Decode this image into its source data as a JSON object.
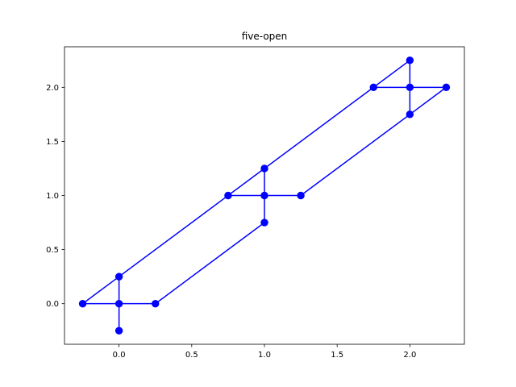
{
  "chart_data": {
    "type": "line",
    "title": "five-open",
    "xlabel": "",
    "ylabel": "",
    "xlim": [
      -0.375,
      2.375
    ],
    "ylim": [
      -0.375,
      2.375
    ],
    "grid": false,
    "x_ticks": [
      0.0,
      0.5,
      1.0,
      1.5,
      2.0
    ],
    "x_tick_labels": [
      "0.0",
      "0.5",
      "1.0",
      "1.5",
      "2.0"
    ],
    "y_ticks": [
      0.0,
      0.5,
      1.0,
      1.5,
      2.0
    ],
    "y_tick_labels": [
      "0.0",
      "0.5",
      "1.0",
      "1.5",
      "2.0"
    ],
    "series": [
      {
        "name": "five-open",
        "color": "#0000ff",
        "marker": "circle",
        "segments": [
          {
            "x": [
              -0.25,
              0.25
            ],
            "y": [
              0.0,
              0.0
            ]
          },
          {
            "x": [
              0.0,
              0.0
            ],
            "y": [
              -0.25,
              0.25
            ]
          },
          {
            "x": [
              0.75,
              1.25
            ],
            "y": [
              1.0,
              1.0
            ]
          },
          {
            "x": [
              1.0,
              1.0
            ],
            "y": [
              0.75,
              1.25
            ]
          },
          {
            "x": [
              1.75,
              2.25
            ],
            "y": [
              2.0,
              2.0
            ]
          },
          {
            "x": [
              2.0,
              2.0
            ],
            "y": [
              1.75,
              2.25
            ]
          },
          {
            "x": [
              -0.25,
              0.0
            ],
            "y": [
              0.0,
              0.25
            ]
          },
          {
            "x": [
              0.0,
              0.75
            ],
            "y": [
              0.25,
              1.0
            ]
          },
          {
            "x": [
              0.75,
              1.0
            ],
            "y": [
              1.0,
              1.25
            ]
          },
          {
            "x": [
              1.0,
              1.75
            ],
            "y": [
              1.25,
              2.0
            ]
          },
          {
            "x": [
              1.75,
              2.0
            ],
            "y": [
              2.0,
              2.25
            ]
          },
          {
            "x": [
              0.25,
              1.0
            ],
            "y": [
              0.0,
              0.75
            ]
          },
          {
            "x": [
              1.25,
              2.0
            ],
            "y": [
              1.0,
              1.75
            ]
          },
          {
            "x": [
              2.0,
              2.25
            ],
            "y": [
              1.75,
              2.0
            ]
          }
        ],
        "points": [
          {
            "x": -0.25,
            "y": 0.0
          },
          {
            "x": 0.0,
            "y": 0.0
          },
          {
            "x": 0.25,
            "y": 0.0
          },
          {
            "x": 0.0,
            "y": 0.25
          },
          {
            "x": 0.0,
            "y": -0.25
          },
          {
            "x": 0.75,
            "y": 1.0
          },
          {
            "x": 1.0,
            "y": 1.0
          },
          {
            "x": 1.25,
            "y": 1.0
          },
          {
            "x": 1.0,
            "y": 1.25
          },
          {
            "x": 1.0,
            "y": 0.75
          },
          {
            "x": 1.75,
            "y": 2.0
          },
          {
            "x": 2.0,
            "y": 2.0
          },
          {
            "x": 2.25,
            "y": 2.0
          },
          {
            "x": 2.0,
            "y": 2.25
          },
          {
            "x": 2.0,
            "y": 1.75
          }
        ]
      }
    ]
  }
}
